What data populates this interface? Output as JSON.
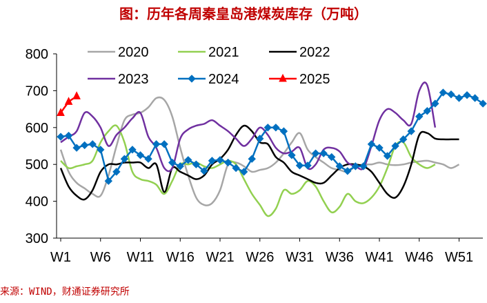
{
  "title": "图：历年各周秦皇岛港煤炭库存（万吨）",
  "source": "来源：WIND，财通证券研究所",
  "chart_data": {
    "type": "line",
    "title": "图：历年各周秦皇岛港煤炭库存（万吨）",
    "xlabel": "",
    "ylabel": "",
    "ylim": [
      300,
      800
    ],
    "yticks": [
      300,
      400,
      500,
      600,
      700,
      800
    ],
    "xtick_labels": [
      "W1",
      "W6",
      "W11",
      "W16",
      "W21",
      "W26",
      "W31",
      "W36",
      "W41",
      "W46",
      "W51"
    ],
    "grid": false,
    "legend_position": "top",
    "series": [
      {
        "name": "2020",
        "color": "#a6a6a6",
        "marker": "none",
        "values": [
          540,
          480,
          450,
          435,
          420,
          415,
          470,
          550,
          620,
          635,
          640,
          655,
          680,
          675,
          630,
          545,
          470,
          410,
          390,
          395,
          430,
          500,
          505,
          495,
          480,
          485,
          490,
          505,
          530,
          560,
          585,
          540,
          520,
          505,
          490,
          485,
          480,
          495,
          500,
          500,
          505,
          500,
          498,
          500,
          505,
          508,
          510,
          505,
          500,
          490,
          500
        ]
      },
      {
        "name": "2021",
        "color": "#92d050",
        "marker": "none",
        "values": [
          510,
          490,
          495,
          500,
          510,
          560,
          590,
          605,
          560,
          480,
          460,
          455,
          445,
          420,
          455,
          500,
          500,
          505,
          495,
          490,
          500,
          510,
          500,
          460,
          420,
          390,
          360,
          380,
          430,
          420,
          430,
          455,
          440,
          400,
          370,
          385,
          420,
          400,
          395,
          410,
          440,
          490,
          550,
          560,
          520,
          500,
          490,
          500
        ]
      },
      {
        "name": "2022",
        "color": "#000000",
        "marker": "none",
        "values": [
          490,
          440,
          415,
          405,
          430,
          480,
          500,
          500,
          505,
          505,
          505,
          490,
          500,
          425,
          490,
          480,
          470,
          460,
          470,
          500,
          515,
          540,
          580,
          605,
          590,
          560,
          555,
          520,
          505,
          480,
          470,
          460,
          450,
          450,
          470,
          490,
          500,
          500,
          495,
          480,
          450,
          420,
          410,
          440,
          500,
          580,
          585,
          570,
          568,
          568,
          568
        ]
      },
      {
        "name": "2023",
        "color": "#7030a0",
        "marker": "none",
        "values": [
          560,
          575,
          590,
          640,
          630,
          600,
          550,
          580,
          600,
          625,
          640,
          575,
          545,
          490,
          490,
          570,
          595,
          605,
          610,
          620,
          605,
          590,
          570,
          550,
          570,
          600,
          580,
          545,
          530,
          535,
          545,
          490,
          500,
          540,
          545,
          535,
          505,
          495,
          490,
          550,
          620,
          650,
          640,
          620,
          610,
          700,
          715,
          600
        ]
      },
      {
        "name": "2024",
        "color": "#0070c0",
        "marker": "diamond",
        "values": [
          575,
          578,
          545,
          552,
          555,
          540,
          455,
          480,
          515,
          540,
          525,
          515,
          555,
          555,
          505,
          495,
          512,
          500,
          482,
          510,
          512,
          505,
          490,
          480,
          515,
          570,
          600,
          600,
          590,
          525,
          497,
          497,
          530,
          530,
          520,
          495,
          482,
          495,
          495,
          555,
          545,
          523,
          550,
          568,
          590,
          630,
          645,
          665,
          695,
          690,
          680,
          688,
          680,
          665
        ]
      },
      {
        "name": "2025",
        "color": "#ff0000",
        "marker": "triangle",
        "values": [
          640,
          670,
          685
        ]
      }
    ]
  }
}
